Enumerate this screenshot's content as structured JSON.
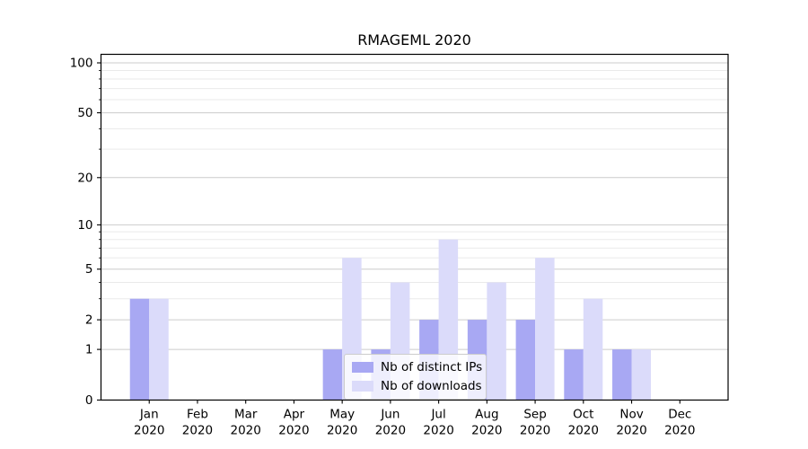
{
  "title": "RMAGEML 2020",
  "chart_data": {
    "type": "bar",
    "title": "RMAGEML 2020",
    "categories": [
      "Jan 2020",
      "Feb 2020",
      "Mar 2020",
      "Apr 2020",
      "May 2020",
      "Jun 2020",
      "Jul 2020",
      "Aug 2020",
      "Sep 2020",
      "Oct 2020",
      "Nov 2020",
      "Dec 2020"
    ],
    "x_tick_months": [
      "Jan",
      "Feb",
      "Mar",
      "Apr",
      "May",
      "Jun",
      "Jul",
      "Aug",
      "Sep",
      "Oct",
      "Nov",
      "Dec"
    ],
    "x_tick_year": "2020",
    "series": [
      {
        "name": "Nb of distinct IPs",
        "color": "#a8a8f3",
        "values": [
          3,
          0,
          0,
          0,
          1,
          1,
          2,
          2,
          2,
          1,
          1,
          0
        ]
      },
      {
        "name": "Nb of downloads",
        "color": "#dbdbfa",
        "values": [
          3,
          0,
          0,
          0,
          6,
          4,
          8,
          4,
          6,
          3,
          1,
          0
        ]
      }
    ],
    "yscale": "log1p",
    "yticks": [
      0,
      1,
      2,
      5,
      10,
      20,
      50,
      100
    ],
    "minor_yticks": [
      3,
      4,
      6,
      7,
      8,
      9,
      30,
      40,
      60,
      70,
      80,
      90
    ],
    "ylim": [
      0,
      113
    ],
    "xlabel": "",
    "ylabel": "",
    "grid": "on",
    "legend_position": "inside lower center"
  },
  "colors": {
    "background": "#ffffff",
    "spine": "#000000",
    "major_grid": "#cccccc",
    "minor_grid": "#eaeaea",
    "text": "#000000"
  }
}
